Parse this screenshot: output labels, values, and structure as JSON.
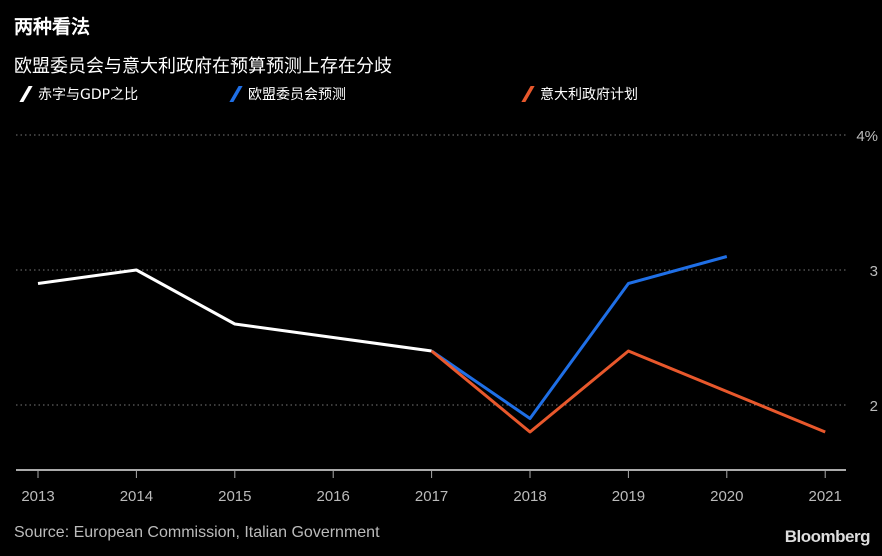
{
  "title": "两种看法",
  "subtitle": "欧盟委员会与意大利政府在预算预测上存在分歧",
  "source": "Source: European Commission, Italian Government",
  "brand": "Bloomberg",
  "chart_data": {
    "type": "line",
    "x": [
      2013,
      2014,
      2015,
      2016,
      2017,
      2018,
      2019,
      2020,
      2021
    ],
    "x_tick_labels": [
      "2013",
      "2014",
      "2015",
      "2016",
      "2017",
      "2018",
      "2019",
      "2020",
      "2021"
    ],
    "y_ticks": [
      2,
      3,
      4
    ],
    "y_tick_labels": [
      "2",
      "3",
      "4%"
    ],
    "ylim": [
      1.5,
      4.0
    ],
    "grid": true,
    "legend_placement": "top",
    "series": [
      {
        "name": "赤字与GDP之比",
        "color": "#ffffff",
        "x": [
          2013,
          2014,
          2015,
          2016,
          2017
        ],
        "values": [
          2.9,
          3.0,
          2.6,
          2.5,
          2.4
        ]
      },
      {
        "name": "欧盟委员会预测",
        "color": "#1f6fe6",
        "x": [
          2017,
          2018,
          2019,
          2020
        ],
        "values": [
          2.4,
          1.9,
          2.9,
          3.1
        ]
      },
      {
        "name": "意大利政府计划",
        "color": "#e8582c",
        "x": [
          2017,
          2018,
          2019,
          2020,
          2021
        ],
        "values": [
          2.4,
          1.8,
          2.4,
          2.1,
          1.8
        ]
      }
    ]
  }
}
